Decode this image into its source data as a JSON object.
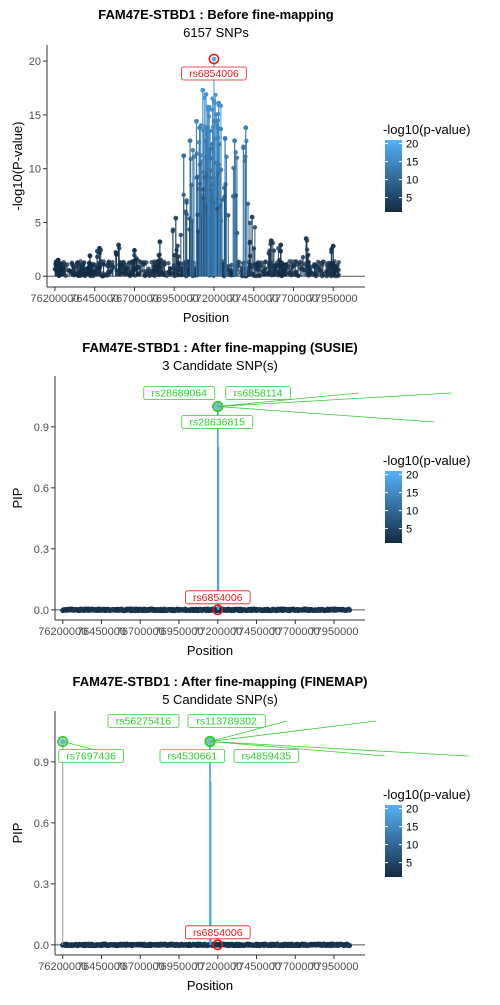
{
  "colors": {
    "gradient_low": "#132B43",
    "gradient_high": "#56B1F7",
    "lead": "#E31A1C",
    "candidate": "#33CC33",
    "axis": "#333333"
  },
  "chart_data": [
    {
      "type": "scatter",
      "title": "FAM47E-STBD1 : Before fine-mapping",
      "subtitle": "6157 SNPs",
      "xlabel": "Position",
      "ylabel": "-log10(P-value)",
      "xlim": [
        76150000,
        78150000
      ],
      "ylim": [
        -1,
        21.5
      ],
      "xticks": [
        76200000,
        76450000,
        76700000,
        76950000,
        77200000,
        77450000,
        77700000,
        77950000
      ],
      "xtick_labels": [
        "76200000",
        "76450000",
        "76700000",
        "76950000",
        "77200000",
        "77450000",
        "77700000",
        "77950000"
      ],
      "yticks": [
        0,
        5,
        10,
        15,
        20
      ],
      "ytick_labels": [
        "0",
        "5",
        "10",
        "15",
        "20"
      ],
      "legend": {
        "title": "-log10(p-value)",
        "labels": [
          "20",
          "15",
          "10",
          "5"
        ],
        "values": [
          20,
          15,
          10,
          5
        ],
        "min": 1,
        "max": 21,
        "position": "right"
      },
      "lead_snp": {
        "label": "rs6854006",
        "x": 77200000,
        "y": 20.2
      },
      "candidates": [],
      "peaks": [
        {
          "x": 76220000,
          "y": 1.5
        },
        {
          "x": 76420000,
          "y": 1.9
        },
        {
          "x": 76480000,
          "y": 2.6
        },
        {
          "x": 76600000,
          "y": 2.9
        },
        {
          "x": 76700000,
          "y": 2.4
        },
        {
          "x": 76860000,
          "y": 3.2
        },
        {
          "x": 76960000,
          "y": 5.4
        },
        {
          "x": 77010000,
          "y": 11.2
        },
        {
          "x": 77050000,
          "y": 12.6
        },
        {
          "x": 77090000,
          "y": 14.4
        },
        {
          "x": 77110000,
          "y": 13.8
        },
        {
          "x": 77130000,
          "y": 17.3
        },
        {
          "x": 77150000,
          "y": 16.9
        },
        {
          "x": 77170000,
          "y": 15.7
        },
        {
          "x": 77200000,
          "y": 20.2
        },
        {
          "x": 77230000,
          "y": 16.1
        },
        {
          "x": 77270000,
          "y": 12.8
        },
        {
          "x": 77330000,
          "y": 12.6
        },
        {
          "x": 77400000,
          "y": 13.8
        },
        {
          "x": 77440000,
          "y": 5.5
        },
        {
          "x": 77560000,
          "y": 3.3
        },
        {
          "x": 77620000,
          "y": 2.9
        },
        {
          "x": 77780000,
          "y": 3.5
        },
        {
          "x": 77950000,
          "y": 2.8
        }
      ]
    },
    {
      "type": "scatter",
      "title": "FAM47E-STBD1 : After fine-mapping (SUSIE)",
      "subtitle": "3 Candidate SNP(s)",
      "xlabel": "Position",
      "ylabel": "PIP",
      "xlim": [
        76150000,
        78150000
      ],
      "ylim": [
        -0.05,
        1.15
      ],
      "xticks": [
        76200000,
        76450000,
        76700000,
        76950000,
        77200000,
        77450000,
        77700000,
        77950000
      ],
      "xtick_labels": [
        "76200000",
        "76450000",
        "76700000",
        "76950000",
        "77200000",
        "77450000",
        "77700000",
        "77950000"
      ],
      "yticks": [
        0,
        0.3,
        0.6,
        0.9
      ],
      "ytick_labels": [
        "0.0",
        "0.3",
        "0.6",
        "0.9"
      ],
      "legend": {
        "title": "-log10(p-value)",
        "labels": [
          "20",
          "15",
          "10",
          "5"
        ],
        "values": [
          20,
          15,
          10,
          5
        ],
        "min": 1,
        "max": 21,
        "position": "right"
      },
      "lead_snp": {
        "label": "rs6854006",
        "x": 77200000,
        "y": 0.0
      },
      "candidates": [
        {
          "label": "rs28689064",
          "x": 77200000,
          "y": 1.0
        },
        {
          "label": "rs6858114",
          "x": 77200000,
          "y": 1.0
        },
        {
          "label": "rs28636815",
          "x": 77200000,
          "y": 1.0
        }
      ],
      "peaks": []
    },
    {
      "type": "scatter",
      "title": "FAM47E-STBD1 : After fine-mapping (FINEMAP)",
      "subtitle": "5 Candidate SNP(s)",
      "xlabel": "Position",
      "ylabel": "PIP",
      "xlim": [
        76150000,
        78150000
      ],
      "ylim": [
        -0.05,
        1.15
      ],
      "xticks": [
        76200000,
        76450000,
        76700000,
        76950000,
        77200000,
        77450000,
        77700000,
        77950000
      ],
      "xtick_labels": [
        "76200000",
        "76450000",
        "76700000",
        "76950000",
        "77200000",
        "77450000",
        "77700000",
        "77950000"
      ],
      "yticks": [
        0,
        0.3,
        0.6,
        0.9
      ],
      "ytick_labels": [
        "0.0",
        "0.3",
        "0.6",
        "0.9"
      ],
      "legend": {
        "title": "-log10(p-value)",
        "labels": [
          "20",
          "15",
          "10",
          "5"
        ],
        "values": [
          20,
          15,
          10,
          5
        ],
        "min": 1,
        "max": 21,
        "position": "right"
      },
      "lead_snp": {
        "label": "rs6854006",
        "x": 77200000,
        "y": 0.0
      },
      "candidates": [
        {
          "label": "rs7697436",
          "x": 76200000,
          "y": 1.0
        },
        {
          "label": "rs56275416",
          "x": 77150000,
          "y": 1.0
        },
        {
          "label": "rs113789302",
          "x": 77150000,
          "y": 1.0
        },
        {
          "label": "rs4530661",
          "x": 77150000,
          "y": 1.0
        },
        {
          "label": "rs4859435",
          "x": 77150000,
          "y": 1.0
        }
      ],
      "peaks": []
    }
  ]
}
